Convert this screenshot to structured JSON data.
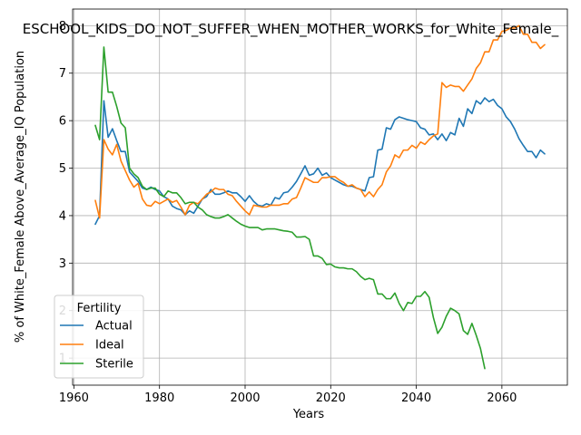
{
  "chart_data": {
    "type": "line",
    "title": "ESCHOOL_KIDS_DO_NOT_SUFFER_WHEN_MOTHER_WORKS_for_White_Female_",
    "xlabel": "Years",
    "ylabel": "% of White_Female Above_Average_IQ Population",
    "xlim": [
      1959.7,
      2075.3
    ],
    "ylim": [
      0.43,
      8.35
    ],
    "xticks": [
      1960,
      1980,
      2000,
      2020,
      2040,
      2060
    ],
    "yticks": [
      1,
      2,
      3,
      4,
      5,
      6,
      7,
      8
    ],
    "grid": true,
    "legend": {
      "title": "Fertility",
      "placement": "lower-left"
    },
    "series": [
      {
        "name": "Actual",
        "color": "#1f77b4",
        "x": [
          1965,
          1966,
          1967,
          1968,
          1969,
          1970,
          1971,
          1972,
          1973,
          1974,
          1975,
          1976,
          1977,
          1978,
          1979,
          1980,
          1981,
          1982,
          1983,
          1984,
          1985,
          1986,
          1987,
          1988,
          1989,
          1990,
          1991,
          1992,
          1993,
          1994,
          1995,
          1996,
          1997,
          1998,
          1999,
          2000,
          2001,
          2002,
          2003,
          2004,
          2005,
          2006,
          2007,
          2008,
          2009,
          2010,
          2011,
          2012,
          2013,
          2014,
          2015,
          2016,
          2017,
          2018,
          2019,
          2020,
          2021,
          2022,
          2023,
          2024,
          2025,
          2026,
          2027,
          2028,
          2029,
          2030,
          2031,
          2032,
          2033,
          2034,
          2035,
          2036,
          2037,
          2038,
          2039,
          2040,
          2041,
          2042,
          2043,
          2044,
          2045,
          2046,
          2047,
          2048,
          2049,
          2050,
          2051,
          2052,
          2053,
          2054,
          2055,
          2056,
          2057,
          2058,
          2059,
          2060,
          2061,
          2062,
          2063,
          2064,
          2065,
          2066,
          2067,
          2068,
          2069,
          2070
        ],
        "y": [
          3.82,
          4.0,
          6.42,
          5.65,
          5.83,
          5.58,
          5.35,
          5.35,
          4.92,
          4.82,
          4.72,
          4.58,
          4.55,
          4.6,
          4.55,
          4.52,
          4.4,
          4.35,
          4.2,
          4.15,
          4.12,
          4.02,
          4.1,
          4.05,
          4.2,
          4.35,
          4.4,
          4.55,
          4.45,
          4.45,
          4.48,
          4.52,
          4.48,
          4.48,
          4.4,
          4.3,
          4.42,
          4.3,
          4.22,
          4.2,
          4.25,
          4.22,
          4.38,
          4.35,
          4.48,
          4.5,
          4.6,
          4.72,
          4.88,
          5.05,
          4.85,
          4.88,
          5.0,
          4.85,
          4.9,
          4.8,
          4.75,
          4.7,
          4.65,
          4.62,
          4.62,
          4.58,
          4.55,
          4.52,
          4.8,
          4.82,
          5.38,
          5.4,
          5.85,
          5.82,
          6.02,
          6.08,
          6.05,
          6.02,
          6.0,
          5.98,
          5.85,
          5.82,
          5.7,
          5.72,
          5.6,
          5.72,
          5.58,
          5.75,
          5.7,
          6.05,
          5.88,
          6.25,
          6.15,
          6.42,
          6.35,
          6.48,
          6.4,
          6.45,
          6.32,
          6.25,
          6.08,
          5.98,
          5.82,
          5.62,
          5.48,
          5.35,
          5.35,
          5.22,
          5.38,
          5.3
        ]
      },
      {
        "name": "Ideal",
        "color": "#ff7f0e",
        "x": [
          1965,
          1966,
          1967,
          1968,
          1969,
          1970,
          1971,
          1972,
          1973,
          1974,
          1975,
          1976,
          1977,
          1978,
          1979,
          1980,
          1981,
          1982,
          1983,
          1984,
          1985,
          1986,
          1987,
          1988,
          1989,
          1990,
          1991,
          1992,
          1993,
          1994,
          1995,
          1996,
          1997,
          1998,
          1999,
          2000,
          2001,
          2002,
          2003,
          2004,
          2005,
          2006,
          2007,
          2008,
          2009,
          2010,
          2011,
          2012,
          2013,
          2014,
          2015,
          2016,
          2017,
          2018,
          2019,
          2020,
          2021,
          2022,
          2023,
          2024,
          2025,
          2026,
          2027,
          2028,
          2029,
          2030,
          2031,
          2032,
          2033,
          2034,
          2035,
          2036,
          2037,
          2038,
          2039,
          2040,
          2041,
          2042,
          2043,
          2044,
          2045,
          2046,
          2047,
          2048,
          2049,
          2050,
          2051,
          2052,
          2053,
          2054,
          2055,
          2056,
          2057,
          2058,
          2059,
          2060,
          2061,
          2062,
          2063,
          2064,
          2065,
          2066,
          2067,
          2068,
          2069,
          2070
        ],
        "y": [
          4.32,
          3.95,
          5.6,
          5.4,
          5.28,
          5.5,
          5.15,
          4.95,
          4.75,
          4.6,
          4.68,
          4.35,
          4.22,
          4.2,
          4.3,
          4.25,
          4.3,
          4.35,
          4.28,
          4.32,
          4.18,
          4.02,
          4.22,
          4.28,
          4.25,
          4.35,
          4.45,
          4.5,
          4.58,
          4.55,
          4.55,
          4.45,
          4.42,
          4.3,
          4.2,
          4.1,
          4.02,
          4.22,
          4.2,
          4.18,
          4.18,
          4.22,
          4.22,
          4.22,
          4.25,
          4.25,
          4.35,
          4.38,
          4.58,
          4.8,
          4.75,
          4.7,
          4.7,
          4.8,
          4.8,
          4.82,
          4.82,
          4.75,
          4.7,
          4.62,
          4.65,
          4.58,
          4.55,
          4.4,
          4.5,
          4.4,
          4.55,
          4.65,
          4.92,
          5.05,
          5.28,
          5.22,
          5.38,
          5.38,
          5.48,
          5.42,
          5.55,
          5.5,
          5.6,
          5.68,
          5.72,
          6.8,
          6.7,
          6.75,
          6.72,
          6.72,
          6.62,
          6.75,
          6.88,
          7.1,
          7.22,
          7.45,
          7.45,
          7.7,
          7.7,
          7.88,
          7.9,
          7.95,
          7.95,
          8.0,
          7.82,
          7.82,
          7.65,
          7.65,
          7.52,
          7.6
        ]
      },
      {
        "name": "Sterile",
        "color": "#2ca02c",
        "x": [
          1965,
          1966,
          1967,
          1968,
          1969,
          1970,
          1971,
          1972,
          1973,
          1974,
          1975,
          1976,
          1977,
          1978,
          1979,
          1980,
          1981,
          1982,
          1983,
          1984,
          1985,
          1986,
          1987,
          1988,
          1989,
          1990,
          1991,
          1992,
          1993,
          1994,
          1995,
          1996,
          1997,
          1998,
          1999,
          2000,
          2001,
          2002,
          2003,
          2004,
          2005,
          2006,
          2007,
          2008,
          2009,
          2010,
          2011,
          2012,
          2013,
          2014,
          2015,
          2016,
          2017,
          2018,
          2019,
          2020,
          2021,
          2022,
          2023,
          2024,
          2025,
          2026,
          2027,
          2028,
          2029,
          2030,
          2031,
          2032,
          2033,
          2034,
          2035,
          2036,
          2037,
          2038,
          2039,
          2040,
          2041,
          2042,
          2043,
          2044,
          2045,
          2046,
          2047,
          2048,
          2049,
          2050,
          2051,
          2052,
          2053,
          2054,
          2055,
          2056
        ],
        "y": [
          5.9,
          5.6,
          7.55,
          6.6,
          6.6,
          6.3,
          5.95,
          5.85,
          5.0,
          4.88,
          4.8,
          4.62,
          4.55,
          4.58,
          4.58,
          4.45,
          4.4,
          4.52,
          4.48,
          4.48,
          4.38,
          4.25,
          4.28,
          4.28,
          4.18,
          4.12,
          4.02,
          3.98,
          3.95,
          3.95,
          3.98,
          4.02,
          3.95,
          3.88,
          3.82,
          3.78,
          3.75,
          3.75,
          3.75,
          3.7,
          3.72,
          3.72,
          3.72,
          3.7,
          3.68,
          3.67,
          3.65,
          3.55,
          3.55,
          3.56,
          3.5,
          3.15,
          3.15,
          3.1,
          2.97,
          2.98,
          2.92,
          2.9,
          2.9,
          2.88,
          2.88,
          2.82,
          2.72,
          2.65,
          2.68,
          2.65,
          2.35,
          2.35,
          2.25,
          2.25,
          2.37,
          2.15,
          2.0,
          2.17,
          2.15,
          2.3,
          2.3,
          2.4,
          2.28,
          1.85,
          1.52,
          1.65,
          1.88,
          2.05,
          2.0,
          1.93,
          1.58,
          1.5,
          1.73,
          1.48,
          1.2,
          0.78
        ]
      }
    ]
  }
}
